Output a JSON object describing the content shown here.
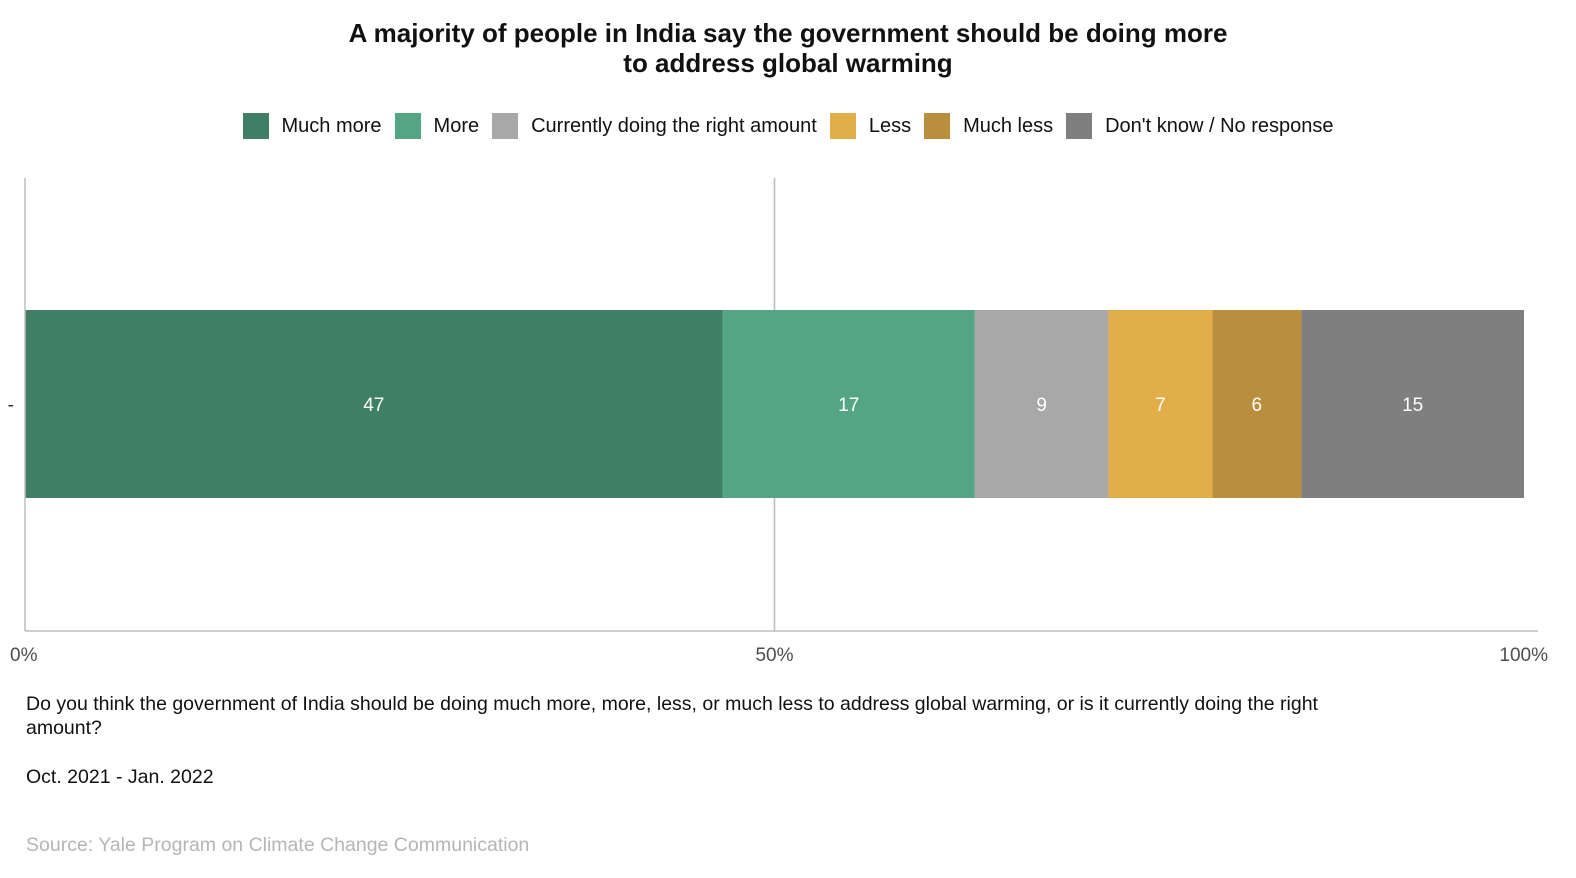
{
  "chart_data": {
    "type": "bar",
    "orientation": "horizontal",
    "stacked": true,
    "title_lines": [
      "A majority of people in India say the government should be doing more",
      "to address global warming"
    ],
    "categories": [
      "-"
    ],
    "series": [
      {
        "name": "Much more",
        "values": [
          47
        ],
        "color": "#3f7f66"
      },
      {
        "name": "More",
        "values": [
          17
        ],
        "color": "#53a584"
      },
      {
        "name": "Currently doing the right amount",
        "values": [
          9
        ],
        "color": "#a8a8a8"
      },
      {
        "name": "Less",
        "values": [
          7
        ],
        "color": "#e2ae4a"
      },
      {
        "name": "Much less",
        "values": [
          6
        ],
        "color": "#b98f3d"
      },
      {
        "name": "Don't know / No response",
        "values": [
          15
        ],
        "color": "#7f7f7f"
      }
    ],
    "xlim": [
      0,
      100
    ],
    "x_ticks": [
      0,
      50,
      100
    ],
    "x_tick_labels": [
      "0%",
      "50%",
      "100%"
    ],
    "legend_position": "top",
    "grid": "vertical at 50%"
  },
  "question_text": "Do you think the government of India should be doing much more, more, less, or much less to address global warming, or is it currently doing the right amount?",
  "date_range": "Oct. 2021 - Jan. 2022",
  "source": "Source: Yale Program on Climate Change Communication",
  "colors": {
    "axis": "#bdbdbd",
    "label_on_bar": "#ffffff",
    "source_text": "#b5b5b5"
  }
}
